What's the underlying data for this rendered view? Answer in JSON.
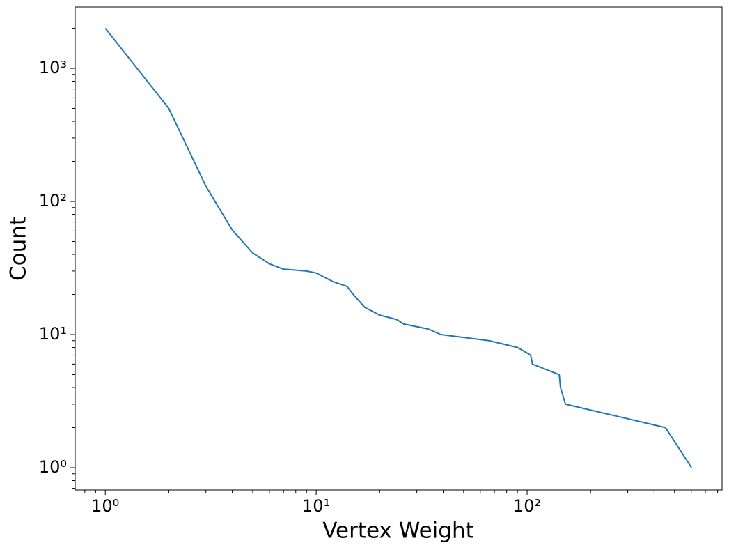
{
  "chart_data": {
    "type": "line",
    "xlabel": "Vertex Weight",
    "ylabel": "Count",
    "x": [
      1,
      2,
      3,
      4,
      5,
      6,
      7,
      9,
      10,
      12,
      14,
      15,
      17,
      20,
      24,
      26,
      34,
      39,
      66,
      90,
      104,
      106,
      142,
      144,
      152,
      453,
      602
    ],
    "series": [
      {
        "color": "#1f77b4",
        "values": [
          2000,
          500,
          130,
          61,
          41,
          34,
          31,
          30,
          29,
          25,
          23,
          20,
          16,
          14,
          13,
          12,
          11,
          10,
          9,
          8,
          7,
          6,
          5,
          4,
          3,
          2,
          1
        ]
      }
    ],
    "xscale": "log",
    "yscale": "log",
    "xlim": [
      0.72,
      840
    ],
    "ylim": [
      0.68,
      2890
    ],
    "xticks": [
      {
        "value": 1,
        "label": "10⁰"
      },
      {
        "value": 10,
        "label": "10¹"
      },
      {
        "value": 100,
        "label": "10²"
      }
    ],
    "yticks": [
      {
        "value": 1,
        "label": "10⁰"
      },
      {
        "value": 10,
        "label": "10¹"
      },
      {
        "value": 100,
        "label": "10²"
      },
      {
        "value": 1000,
        "label": "10³"
      }
    ],
    "xminorticks": [
      0.8,
      0.9,
      2,
      3,
      4,
      5,
      6,
      7,
      8,
      9,
      20,
      30,
      40,
      50,
      60,
      70,
      80,
      90,
      200,
      300,
      400,
      500,
      600,
      700,
      800
    ],
    "yminorticks": [
      0.7,
      0.8,
      0.9,
      2,
      3,
      4,
      5,
      6,
      7,
      8,
      9,
      20,
      30,
      40,
      50,
      60,
      70,
      80,
      90,
      200,
      300,
      400,
      500,
      600,
      700,
      800,
      900,
      2000
    ],
    "grid": false
  }
}
